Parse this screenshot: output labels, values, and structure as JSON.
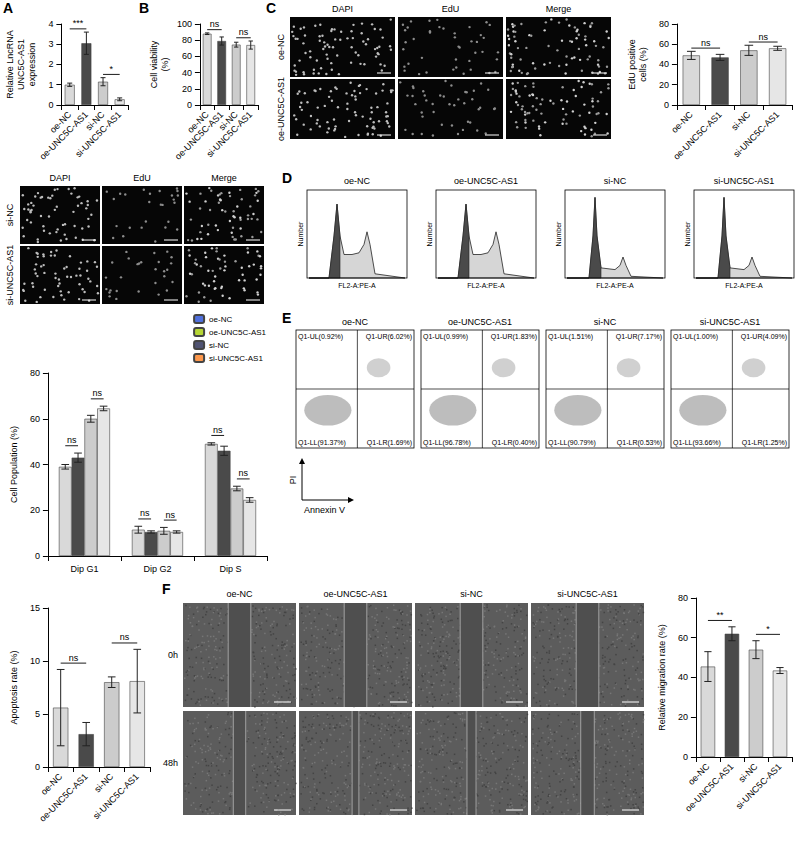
{
  "chart_data": [
    {
      "panel": "A",
      "type": "bar",
      "ylabel": "Relative LncRNA UNC5C-AS1 expression",
      "categories": [
        "oe-NC",
        "oe-UNC5C-AS1",
        "si-NC",
        "si-UNC5C-AS1"
      ],
      "values": [
        1.0,
        3.05,
        1.15,
        0.28
      ],
      "errors": [
        0.08,
        0.55,
        0.2,
        0.07
      ],
      "colors": [
        "#d9d9d9",
        "#4a4a4a",
        "#cccccc",
        "#e6e6e6"
      ],
      "ylim": [
        0,
        4
      ],
      "yticks": [
        0,
        1,
        2,
        3,
        4
      ],
      "grid": false,
      "annotations": [
        {
          "between": [
            "oe-NC",
            "oe-UNC5C-AS1"
          ],
          "text": "***"
        },
        {
          "between": [
            "si-NC",
            "si-UNC5C-AS1"
          ],
          "text": "*"
        }
      ]
    },
    {
      "panel": "B",
      "type": "bar",
      "ylabel": "Cell viability (%)",
      "categories": [
        "oe-NC",
        "oe-UNC5C-AS1",
        "si-NC",
        "si-UNC5C-AS1"
      ],
      "values": [
        88,
        79,
        74.5,
        74
      ],
      "errors": [
        1,
        5,
        3,
        5
      ],
      "colors": [
        "#d9d9d9",
        "#4a4a4a",
        "#cccccc",
        "#e6e6e6"
      ],
      "ylim": [
        0,
        100
      ],
      "yticks": [
        0,
        20,
        40,
        60,
        80,
        100
      ],
      "grid": false,
      "annotations": [
        {
          "between": [
            "oe-NC",
            "oe-UNC5C-AS1"
          ],
          "text": "ns"
        },
        {
          "between": [
            "si-NC",
            "si-UNC5C-AS1"
          ],
          "text": "ns"
        }
      ]
    },
    {
      "type": "bar",
      "ylabel": "EdU positive cells (%)",
      "categories": [
        "oe-NC",
        "oe-UNC5C-AS1",
        "si-NC",
        "si-UNC5C-AS1"
      ],
      "values": [
        49,
        47,
        54,
        56
      ],
      "errors": [
        4,
        3,
        5,
        2
      ],
      "colors": [
        "#d9d9d9",
        "#4a4a4a",
        "#cccccc",
        "#e6e6e6"
      ],
      "ylim": [
        0,
        80
      ],
      "yticks": [
        0,
        20,
        40,
        60,
        80
      ],
      "grid": false,
      "annotations": [
        {
          "between": [
            "oe-NC",
            "oe-UNC5C-AS1"
          ],
          "text": "ns"
        },
        {
          "between": [
            "si-NC",
            "si-UNC5C-AS1"
          ],
          "text": "ns"
        }
      ]
    },
    {
      "type": "bar",
      "ylabel": "Cell Population (%)",
      "categories": [
        "Dip G1",
        "Dip G2",
        "Dip S"
      ],
      "series": [
        {
          "name": "oe-NC",
          "color": "#d9d9d9",
          "values": [
            39,
            11.5,
            49
          ],
          "errors": [
            1,
            1.5,
            0.5
          ]
        },
        {
          "name": "oe-UNC5C-AS1",
          "color": "#4a4a4a",
          "values": [
            43,
            10.5,
            46
          ],
          "errors": [
            2,
            0.5,
            2
          ]
        },
        {
          "name": "si-NC",
          "color": "#cccccc",
          "values": [
            60,
            11,
            29.5
          ],
          "errors": [
            1.5,
            1.5,
            1
          ]
        },
        {
          "name": "si-UNC5C-AS1",
          "color": "#e6e6e6",
          "values": [
            64.5,
            10.5,
            24.5
          ],
          "errors": [
            1,
            0.5,
            1
          ]
        }
      ],
      "ylim": [
        0,
        80
      ],
      "yticks": [
        0,
        20,
        40,
        60,
        80
      ],
      "grid": false,
      "legend": "top-right",
      "annotations": [
        {
          "category": "Dip G1",
          "between": [
            "oe-NC",
            "oe-UNC5C-AS1"
          ],
          "text": "ns"
        },
        {
          "category": "Dip G1",
          "between": [
            "si-NC",
            "si-UNC5C-AS1"
          ],
          "text": "ns"
        },
        {
          "category": "Dip G2",
          "between": [
            "oe-NC",
            "oe-UNC5C-AS1"
          ],
          "text": "ns"
        },
        {
          "category": "Dip G2",
          "between": [
            "si-NC",
            "si-UNC5C-AS1"
          ],
          "text": "ns"
        },
        {
          "category": "Dip S",
          "between": [
            "oe-NC",
            "oe-UNC5C-AS1"
          ],
          "text": "ns"
        },
        {
          "category": "Dip S",
          "between": [
            "si-NC",
            "si-UNC5C-AS1"
          ],
          "text": "ns"
        }
      ]
    },
    {
      "type": "bar",
      "ylabel": "Apoptosis rate (%)",
      "categories": [
        "oe-NC",
        "oe-UNC5C-AS1",
        "si-NC",
        "si-UNC5C-AS1"
      ],
      "values": [
        5.6,
        3.1,
        8.0,
        8.1
      ],
      "errors": [
        3.6,
        1.1,
        0.5,
        3.0
      ],
      "colors": [
        "#d9d9d9",
        "#4a4a4a",
        "#cccccc",
        "#e6e6e6"
      ],
      "ylim": [
        0,
        15
      ],
      "yticks": [
        0,
        5,
        10,
        15
      ],
      "grid": false,
      "annotations": [
        {
          "between": [
            "oe-NC",
            "oe-UNC5C-AS1"
          ],
          "text": "ns"
        },
        {
          "between": [
            "si-NC",
            "si-UNC5C-AS1"
          ],
          "text": "ns"
        }
      ]
    },
    {
      "type": "bar",
      "ylabel": "Relative migration rate (%)",
      "categories": [
        "oe-NC",
        "oe-UNC5C-AS1",
        "si-NC",
        "si-UNC5C-AS1"
      ],
      "values": [
        45.5,
        62,
        54,
        43.5
      ],
      "errors": [
        7.5,
        3.5,
        4.5,
        1.5
      ],
      "colors": [
        "#d9d9d9",
        "#4a4a4a",
        "#cccccc",
        "#e6e6e6"
      ],
      "ylim": [
        0,
        80
      ],
      "yticks": [
        0,
        20,
        40,
        60,
        80
      ],
      "grid": false,
      "annotations": [
        {
          "between": [
            "oe-NC",
            "oe-UNC5C-AS1"
          ],
          "text": "**"
        },
        {
          "between": [
            "si-NC",
            "si-UNC5C-AS1"
          ],
          "text": "*"
        }
      ]
    }
  ],
  "image_grids": [
    {
      "panel": "C",
      "columns": [
        "DAPI",
        "EdU",
        "Merge"
      ],
      "rows": [
        "oe-NC",
        "oe-UNC5C-AS1"
      ]
    },
    {
      "columns": [
        "DAPI",
        "EdU",
        "Merge"
      ],
      "rows": [
        "si-NC",
        "si-UNC5C-AS1"
      ]
    },
    {
      "panel": "F",
      "columns": [
        "oe-NC",
        "oe-UNC5C-AS1",
        "si-NC",
        "si-UNC5C-AS1"
      ],
      "rows": [
        "0h",
        "48h"
      ]
    }
  ],
  "histograms": {
    "panel": "D",
    "titles": [
      "oe-NC",
      "oe-UNC5C-AS1",
      "si-NC",
      "si-UNC5C-AS1"
    ],
    "xlabel": "FL2-A:PE-A",
    "ylabel": "Number"
  },
  "flow_plots": {
    "panel": "E",
    "titles": [
      "oe-NC",
      "oe-UNC5C-AS1",
      "si-NC",
      "si-UNC5C-AS1"
    ],
    "xlabel": "Annexin V",
    "ylabel": "PI",
    "quadrants": [
      {
        "upper_left": "Q1-UL(0.92%)",
        "upper_right": "Q1-UR(6.02%)",
        "lower_left": "Q1-LL(91.37%)",
        "lower_right": "Q1-LR(1.69%)"
      },
      {
        "upper_left": "Q1-UL(0.99%)",
        "upper_right": "Q1-UR(1.83%)",
        "lower_left": "Q1-LL(96.78%)",
        "lower_right": "Q1-LR(0.40%)"
      },
      {
        "upper_left": "Q1-UL(1.51%)",
        "upper_right": "Q1-UR(7.17%)",
        "lower_left": "Q1-LL(90.79%)",
        "lower_right": "Q1-LR(0.53%)"
      },
      {
        "upper_left": "Q1-UL(1.00%)",
        "upper_right": "Q1-UR(4.09%)",
        "lower_left": "Q1-LL(93.66%)",
        "lower_right": "Q1-LR(1.25%)"
      }
    ]
  }
}
